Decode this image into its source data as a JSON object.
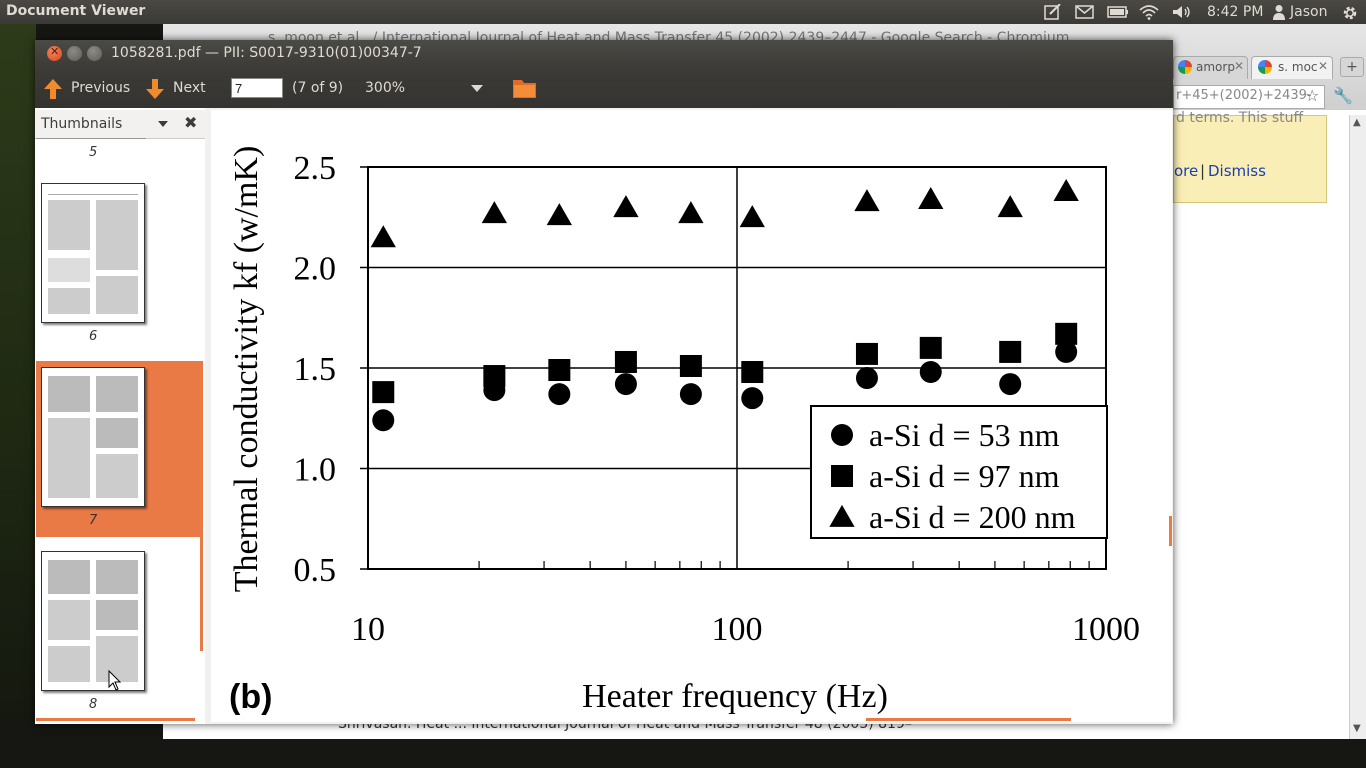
{
  "panel": {
    "app_title": "Document Viewer",
    "clock": "8:42 PM",
    "user": "Jason",
    "indicators": [
      "edit-icon",
      "mail-icon",
      "battery-icon",
      "wifi-icon",
      "volume-icon",
      "user-icon",
      "gear-icon"
    ]
  },
  "chrome": {
    "title": "s. moon et al., / International Journal of Heat and Mass Transfer 45 (2002) 2439–2447 - Google Search - Chromium",
    "tabs": [
      {
        "label": "amorp"
      },
      {
        "label": "s. moc"
      }
    ],
    "omnibox": "r+45+(2002)+2439-",
    "infobar_text": "d terms. This stuff",
    "infobar_more": "ore",
    "infobar_sep": "|",
    "infobar_dismiss": "Dismiss",
    "status_text": "Shrivasan. Heat ... International Journal of Heat and Mass Transfer 48 (2005) 819–"
  },
  "viewer": {
    "window_title": "1058281.pdf — PII: S0017-9310(01)00347-7",
    "prev_label": "Previous",
    "next_label": "Next",
    "page_value": "7",
    "page_count": "(7 of 9)",
    "zoom": "300%",
    "sidebar_title": "Thumbnails",
    "thumbnails": [
      {
        "label": "5"
      },
      {
        "label": "6"
      },
      {
        "label": "7",
        "selected": true
      },
      {
        "label": "8"
      }
    ]
  },
  "chart_data": {
    "type": "scatter",
    "panel_label": "(b)",
    "xlabel": "Heater frequency (Hz)",
    "ylabel": "Thermal conductivity kf (w/mK)",
    "xscale": "log",
    "xlim": [
      10,
      1000
    ],
    "ylim": [
      0.5,
      2.5
    ],
    "xticks": [
      "10",
      "100",
      "1000"
    ],
    "yticks": [
      "0.5",
      "1.0",
      "1.5",
      "2.0",
      "2.5"
    ],
    "grid": true,
    "legend_position": "bottom-right",
    "series": [
      {
        "name": "a-Si d = 53 nm",
        "marker": "circle",
        "x": [
          11,
          22,
          33,
          50,
          75,
          110,
          225,
          335,
          550,
          780
        ],
        "y": [
          1.24,
          1.39,
          1.37,
          1.42,
          1.37,
          1.35,
          1.45,
          1.48,
          1.42,
          1.58
        ]
      },
      {
        "name": "a-Si d = 97 nm",
        "marker": "square",
        "x": [
          11,
          22,
          33,
          50,
          75,
          110,
          225,
          335,
          550,
          780
        ],
        "y": [
          1.38,
          1.46,
          1.49,
          1.53,
          1.51,
          1.48,
          1.57,
          1.6,
          1.58,
          1.67
        ]
      },
      {
        "name": "a-Si d = 200 nm",
        "marker": "triangle",
        "x": [
          11,
          22,
          33,
          50,
          75,
          110,
          225,
          335,
          550,
          780
        ],
        "y": [
          2.15,
          2.27,
          2.26,
          2.3,
          2.27,
          2.25,
          2.33,
          2.34,
          2.3,
          2.38
        ]
      }
    ]
  }
}
